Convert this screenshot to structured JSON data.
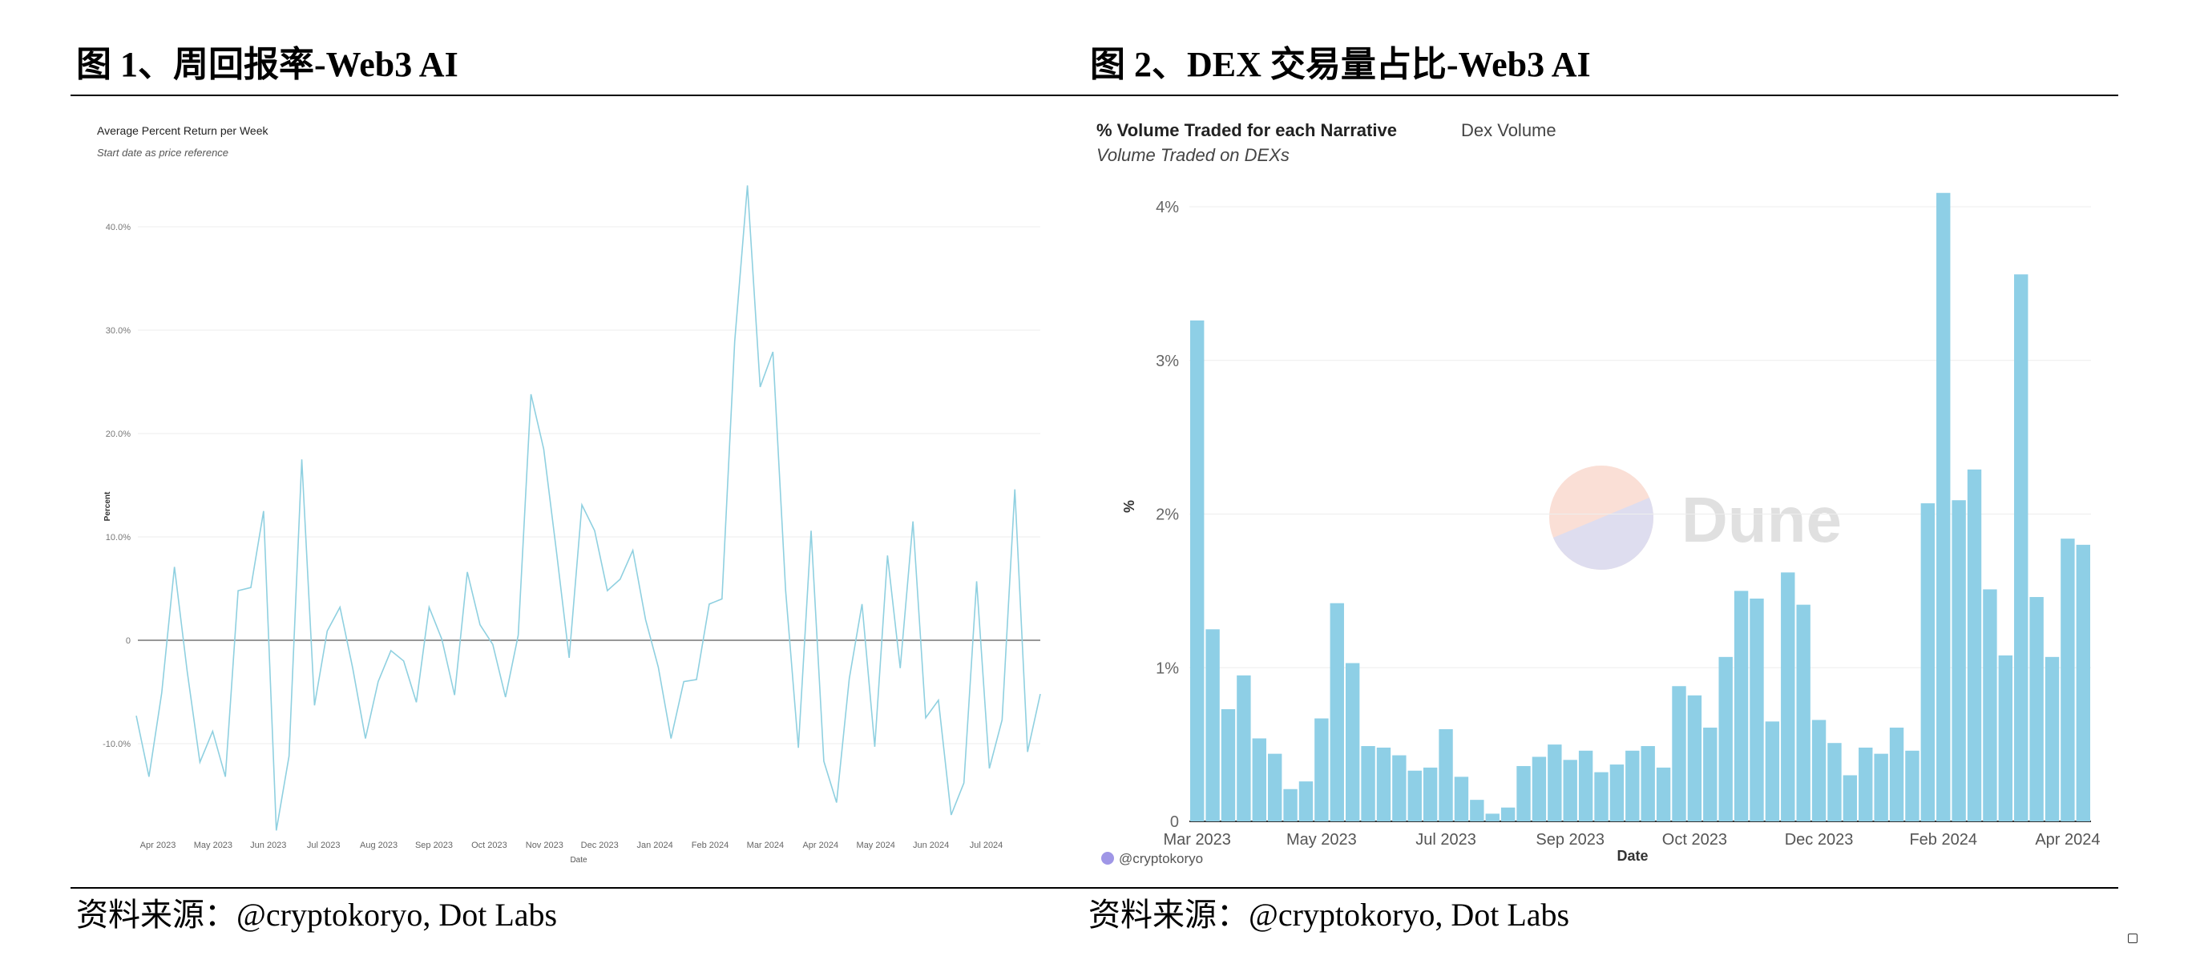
{
  "figures": [
    {
      "title": "图 1、周回报率-Web3 AI",
      "source": "资料来源：@cryptokoryo, Dot Labs"
    },
    {
      "title": "图 2、DEX 交易量占比-Web3 AI",
      "source": "资料来源：@cryptokoryo, Dot Labs"
    }
  ],
  "chart_data": [
    {
      "type": "line",
      "title": "Average Percent Return per Week",
      "subtitle": "Start date as price reference",
      "xlabel": "Date",
      "ylabel": "Percent",
      "color": "#8fd0e0",
      "ylim": [
        -20,
        45
      ],
      "yticks": [
        {
          "v": -10,
          "label": "-10.0%"
        },
        {
          "v": 0,
          "label": "0"
        },
        {
          "v": 10,
          "label": "10.0%"
        },
        {
          "v": 20,
          "label": "20.0%"
        },
        {
          "v": 30,
          "label": "30.0%"
        },
        {
          "v": 40,
          "label": "40.0%"
        }
      ],
      "xticks": [
        "Apr 2023",
        "May 2023",
        "Jun 2023",
        "Jul 2023",
        "Aug 2023",
        "Sep 2023",
        "Oct 2023",
        "Nov 2023",
        "Dec 2023",
        "Jan 2024",
        "Feb 2024",
        "Mar 2024",
        "Apr 2024",
        "May 2024",
        "Jun 2024",
        "Jul 2024"
      ],
      "grid": true,
      "values": [
        -7.3,
        -13.2,
        -5.1,
        7.1,
        -3.0,
        -11.8,
        -8.8,
        -13.2,
        4.8,
        5.1,
        12.5,
        -18.4,
        -11.2,
        17.5,
        -6.3,
        0.9,
        3.2,
        -2.7,
        -9.5,
        -4.0,
        -1.0,
        -2.0,
        -6.0,
        3.2,
        0.1,
        -5.3,
        6.6,
        1.5,
        -0.4,
        -5.5,
        0.5,
        23.8,
        18.5,
        8.6,
        -1.7,
        13.1,
        10.6,
        4.8,
        5.9,
        8.7,
        2.0,
        -2.6,
        -9.5,
        -4.0,
        -3.8,
        3.5,
        4.0,
        28.9,
        44.0,
        24.5,
        27.9,
        4.8,
        -10.4,
        10.6,
        -11.7,
        -15.7,
        -3.7,
        3.5,
        -10.3,
        8.2,
        -2.7,
        11.5,
        -7.5,
        -5.8,
        -16.9,
        -13.8,
        5.7,
        -12.4,
        -7.7,
        14.6,
        -10.8,
        -5.2
      ]
    },
    {
      "type": "bar",
      "title": "% Volume Traded for each Narrative",
      "tab": "Dex Volume",
      "subtitle": "Volume Traded on DEXs",
      "xlabel": "Date",
      "ylabel": "%",
      "color": "#8ecfe6",
      "ylim": [
        0,
        4.2
      ],
      "yticks": [
        {
          "v": 0,
          "label": "0"
        },
        {
          "v": 1,
          "label": "1%"
        },
        {
          "v": 2,
          "label": "2%"
        },
        {
          "v": 3,
          "label": "3%"
        },
        {
          "v": 4,
          "label": "4%"
        }
      ],
      "xticks": [
        {
          "bar": 0,
          "label": "Mar 2023"
        },
        {
          "bar": 8,
          "label": "May 2023"
        },
        {
          "bar": 16,
          "label": "Jul 2023"
        },
        {
          "bar": 24,
          "label": "Sep 2023"
        },
        {
          "bar": 32,
          "label": "Oct 2023"
        },
        {
          "bar": 40,
          "label": "Dec 2023"
        },
        {
          "bar": 48,
          "label": "Feb 2024"
        },
        {
          "bar": 56,
          "label": "Apr 2024"
        }
      ],
      "grid": true,
      "watermark": "Dune",
      "credit": "@cryptokoryo",
      "values": [
        3.26,
        1.25,
        0.73,
        0.95,
        0.54,
        0.44,
        0.21,
        0.26,
        0.67,
        1.42,
        1.03,
        0.49,
        0.48,
        0.43,
        0.33,
        0.35,
        0.6,
        0.29,
        0.14,
        0.05,
        0.09,
        0.36,
        0.42,
        0.5,
        0.4,
        0.46,
        0.32,
        0.37,
        0.46,
        0.49,
        0.35,
        0.88,
        0.82,
        0.61,
        1.07,
        1.5,
        1.45,
        0.65,
        1.62,
        1.41,
        0.66,
        0.51,
        0.3,
        0.48,
        0.44,
        0.61,
        0.46,
        2.07,
        4.09,
        2.09,
        2.29,
        1.51,
        1.08,
        3.56,
        1.46,
        1.07,
        1.84,
        1.8
      ]
    }
  ]
}
